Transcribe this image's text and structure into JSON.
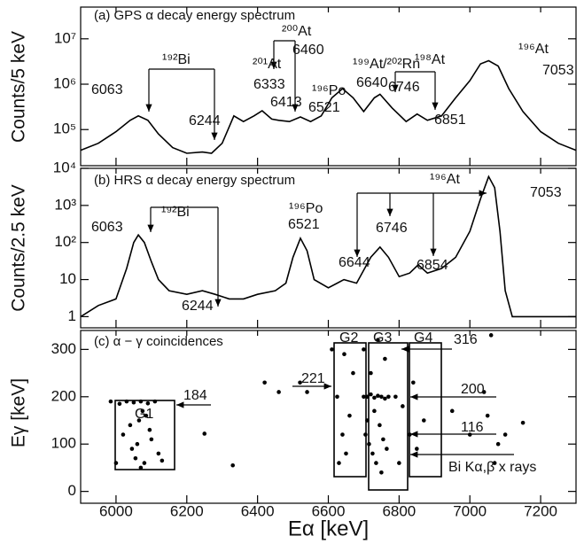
{
  "chart_data": [
    {
      "type": "line",
      "ylabel": "Counts/5 keV",
      "log_y": true,
      "color": "#000000",
      "xlim": [
        5900,
        7300
      ],
      "ylim": [
        16000,
        50000000
      ],
      "yticks": [
        {
          "value": 100000,
          "label": "10⁵"
        },
        {
          "value": 1000000,
          "label": "10⁶"
        },
        {
          "value": 10000000,
          "label": "10⁷"
        }
      ],
      "x": [
        5900,
        5950,
        6000,
        6040,
        6063,
        6090,
        6120,
        6160,
        6200,
        6244,
        6270,
        6300,
        6333,
        6360,
        6390,
        6413,
        6440,
        6460,
        6490,
        6521,
        6550,
        6580,
        6610,
        6640,
        6670,
        6700,
        6730,
        6746,
        6780,
        6820,
        6851,
        6880,
        6920,
        6960,
        7000,
        7030,
        7053,
        7080,
        7110,
        7150,
        7200,
        7250,
        7300
      ],
      "values": [
        35000,
        50000,
        90000,
        160000,
        200000,
        160000,
        80000,
        40000,
        30000,
        32000,
        30000,
        50000,
        200000,
        150000,
        200000,
        260000,
        170000,
        160000,
        150000,
        190000,
        150000,
        200000,
        500000,
        800000,
        500000,
        250000,
        500000,
        600000,
        300000,
        150000,
        220000,
        160000,
        200000,
        500000,
        1200000,
        2800000,
        3300000,
        2500000,
        800000,
        250000,
        90000,
        50000,
        35000
      ],
      "annotations": [
        "(a) GPS α decay energy spectrum",
        "6063",
        "¹⁹²Bi",
        "6244",
        "²⁰¹At",
        "6333",
        "²⁰⁰At",
        "6460",
        "6413",
        "¹⁹⁶Po",
        "6521",
        "¹⁹⁹At/²⁰²Rn",
        "6640",
        "¹⁹⁸At",
        "6746",
        "6851",
        "¹⁹⁶At",
        "7053"
      ]
    },
    {
      "type": "line",
      "ylabel": "Counts/2.5 keV",
      "log_y": true,
      "color": "#000000",
      "xlim": [
        5900,
        7300
      ],
      "ylim": [
        0.5,
        10000
      ],
      "yticks": [
        1,
        10,
        {
          "value": 100,
          "label": "10²"
        },
        {
          "value": 1000,
          "label": "10³"
        },
        {
          "value": 10000,
          "label": "10⁴"
        }
      ],
      "x": [
        5900,
        5950,
        6000,
        6030,
        6050,
        6063,
        6080,
        6100,
        6120,
        6150,
        6200,
        6244,
        6280,
        6320,
        6360,
        6400,
        6450,
        6480,
        6500,
        6521,
        6540,
        6560,
        6600,
        6644,
        6680,
        6720,
        6746,
        6770,
        6800,
        6830,
        6854,
        6880,
        6920,
        6960,
        7000,
        7030,
        7053,
        7070,
        7085,
        7100,
        7120,
        7150,
        7200,
        7300
      ],
      "values": [
        1,
        2,
        3,
        20,
        100,
        160,
        100,
        30,
        10,
        5,
        4,
        5,
        4,
        3,
        3,
        4,
        5,
        8,
        40,
        130,
        60,
        10,
        6,
        10,
        8,
        40,
        75,
        40,
        12,
        15,
        25,
        15,
        20,
        40,
        200,
        1500,
        6000,
        3000,
        200,
        5,
        1,
        1,
        1,
        1
      ],
      "annotations": [
        "(b) HRS α decay energy spectrum",
        "¹⁹²Bi",
        "6063",
        "6244",
        "¹⁹⁶Po",
        "6521",
        "¹⁹⁶At",
        "6644",
        "6746",
        "6854",
        "7053"
      ]
    },
    {
      "type": "scatter",
      "ylabel": "Eγ [keV]",
      "xlabel": "Eα [keV]",
      "color": "#000000",
      "xlim": [
        5900,
        7300
      ],
      "ylim": [
        -25,
        340
      ],
      "xticks": [
        6000,
        6200,
        6400,
        6600,
        6800,
        7000,
        7200
      ],
      "yticks": [
        0,
        100,
        200,
        300
      ],
      "x": [
        5985,
        6010,
        6030,
        6050,
        6070,
        6090,
        6110,
        6020,
        6045,
        6065,
        6080,
        6100,
        6120,
        6040,
        6060,
        6075,
        6095,
        6055,
        6085,
        6070,
        6000,
        6130,
        6250,
        6330,
        6420,
        6460,
        6520,
        6540,
        6610,
        6625,
        6640,
        6650,
        6660,
        6670,
        6630,
        6645,
        6700,
        6710,
        6720,
        6730,
        6740,
        6750,
        6760,
        6770,
        6705,
        6715,
        6725,
        6735,
        6745,
        6755,
        6765,
        6700,
        6720,
        6740,
        6760,
        6710,
        6730,
        6750,
        6790,
        6810,
        6830,
        6850,
        6870,
        6800,
        6840,
        6950,
        7000,
        7040,
        7060,
        7080,
        7050,
        7070,
        7100,
        7150
      ],
      "values": [
        190,
        185,
        190,
        188,
        190,
        186,
        190,
        120,
        90,
        150,
        60,
        110,
        80,
        140,
        100,
        170,
        130,
        70,
        160,
        50,
        60,
        65,
        122,
        55,
        230,
        210,
        230,
        210,
        300,
        200,
        120,
        80,
        160,
        250,
        60,
        290,
        200,
        200,
        205,
        198,
        202,
        200,
        196,
        200,
        120,
        100,
        80,
        60,
        140,
        110,
        90,
        300,
        250,
        320,
        280,
        150,
        170,
        40,
        200,
        180,
        120,
        90,
        150,
        60,
        230,
        170,
        120,
        210,
        330,
        100,
        160,
        60,
        120,
        145
      ],
      "annotations": [
        "(c) α − γ coincidences",
        "G1",
        "G2",
        "G3",
        "G4",
        "184",
        "221",
        "316",
        "200",
        "116",
        "Bi Kα,β x rays"
      ]
    }
  ]
}
